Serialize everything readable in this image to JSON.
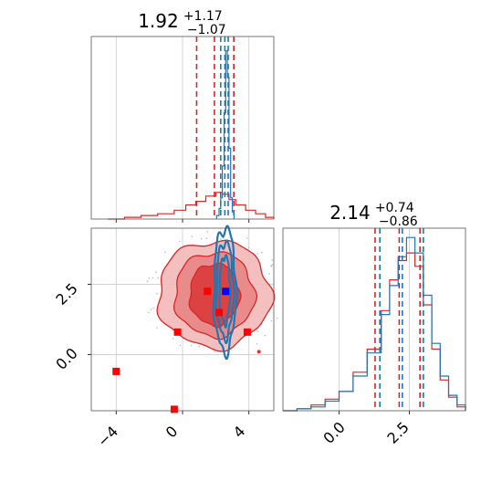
{
  "chart_data": [
    {
      "type": "histogram",
      "panel": "x-marginal",
      "title": {
        "main": "1.92",
        "sup": "+1.17",
        "sub": "−1.07"
      },
      "xlim": [
        -5.5,
        5.5
      ],
      "grid": true,
      "series": [
        {
          "color": "#1f77b4",
          "style": "step",
          "bins": [
            [
              2.05,
              0.02
            ],
            [
              2.2,
              0.06
            ],
            [
              2.3,
              0.12
            ],
            [
              2.4,
              0.3
            ],
            [
              2.5,
              0.6
            ],
            [
              2.6,
              0.95
            ],
            [
              2.7,
              0.8
            ],
            [
              2.8,
              0.4
            ],
            [
              2.9,
              0.12
            ],
            [
              3.0,
              0.04
            ],
            [
              3.1,
              0.0
            ]
          ],
          "quantiles": [
            2.3,
            2.55,
            2.75
          ]
        },
        {
          "color": "#d62728",
          "style": "step",
          "bins": [
            [
              -4.5,
              0.0
            ],
            [
              -3.5,
              0.01
            ],
            [
              -2.5,
              0.02
            ],
            [
              -1.5,
              0.03
            ],
            [
              -0.5,
              0.05
            ],
            [
              0.2,
              0.08
            ],
            [
              0.8,
              0.1
            ],
            [
              1.4,
              0.13
            ],
            [
              2.0,
              0.15
            ],
            [
              2.4,
              0.14
            ],
            [
              2.8,
              0.11
            ],
            [
              3.2,
              0.08
            ],
            [
              3.8,
              0.05
            ],
            [
              4.4,
              0.03
            ],
            [
              5.0,
              0.01
            ],
            [
              5.5,
              0.0
            ]
          ],
          "quantiles": [
            0.85,
            1.92,
            3.09
          ]
        }
      ]
    },
    {
      "type": "contour",
      "panel": "joint",
      "xlim": [
        -5.5,
        5.5
      ],
      "ylim": [
        -2.0,
        4.5
      ],
      "xticks": [
        "−4",
        "0",
        "4"
      ],
      "yticks": [
        "0.0",
        "2.5"
      ],
      "grid": true,
      "series": [
        {
          "name": "",
          "color": "#d62728",
          "style": "filled-contour",
          "center": [
            1.92,
            2.14
          ],
          "levels": [
            [
              1.5,
              1.1
            ],
            [
              2.4,
              1.5
            ],
            [
              3.4,
              1.9
            ]
          ]
        },
        {
          "name": "",
          "color": "#1f77b4",
          "style": "line-contour",
          "center": [
            2.55,
            2.3
          ],
          "levels": [
            [
              0.15,
              1.2
            ],
            [
              0.35,
              1.7
            ],
            [
              0.5,
              2.2
            ]
          ]
        }
      ],
      "markers": {
        "red": [
          [
            -4.0,
            -0.6
          ],
          [
            -0.5,
            -1.95
          ],
          [
            -0.3,
            0.8
          ],
          [
            1.5,
            2.25
          ],
          [
            2.2,
            1.5
          ],
          [
            3.9,
            0.8
          ]
        ],
        "blue": [
          [
            2.6,
            2.25
          ]
        ]
      }
    },
    {
      "type": "histogram",
      "panel": "y-marginal",
      "title": {
        "main": "2.14",
        "sup": "+0.74",
        "sub": "−0.86"
      },
      "xlim": [
        -2.0,
        4.5
      ],
      "xticks": [
        "0.0",
        "2.5"
      ],
      "grid": true,
      "series": [
        {
          "color": "#1f77b4",
          "style": "step",
          "bins": [
            [
              -2.0,
              0.0
            ],
            [
              -1.5,
              0.01
            ],
            [
              -1.0,
              0.02
            ],
            [
              -0.5,
              0.05
            ],
            [
              0.0,
              0.1
            ],
            [
              0.5,
              0.18
            ],
            [
              1.0,
              0.3
            ],
            [
              1.5,
              0.5
            ],
            [
              1.8,
              0.65
            ],
            [
              2.1,
              0.8
            ],
            [
              2.4,
              0.9
            ],
            [
              2.7,
              0.82
            ],
            [
              3.0,
              0.6
            ],
            [
              3.3,
              0.35
            ],
            [
              3.6,
              0.18
            ],
            [
              3.9,
              0.08
            ],
            [
              4.2,
              0.03
            ],
            [
              4.5,
              0.0
            ]
          ],
          "quantiles": [
            1.45,
            2.25,
            3.0
          ]
        },
        {
          "color": "#d62728",
          "style": "step",
          "bins": [
            [
              -2.0,
              0.0
            ],
            [
              -1.5,
              0.01
            ],
            [
              -1.0,
              0.03
            ],
            [
              -0.5,
              0.06
            ],
            [
              0.0,
              0.1
            ],
            [
              0.5,
              0.2
            ],
            [
              1.0,
              0.32
            ],
            [
              1.5,
              0.52
            ],
            [
              1.8,
              0.68
            ],
            [
              2.1,
              0.78
            ],
            [
              2.4,
              0.82
            ],
            [
              2.7,
              0.75
            ],
            [
              3.0,
              0.55
            ],
            [
              3.3,
              0.32
            ],
            [
              3.6,
              0.16
            ],
            [
              3.9,
              0.07
            ],
            [
              4.2,
              0.02
            ],
            [
              4.5,
              0.0
            ]
          ],
          "quantiles": [
            1.28,
            2.14,
            2.88
          ]
        }
      ]
    }
  ]
}
